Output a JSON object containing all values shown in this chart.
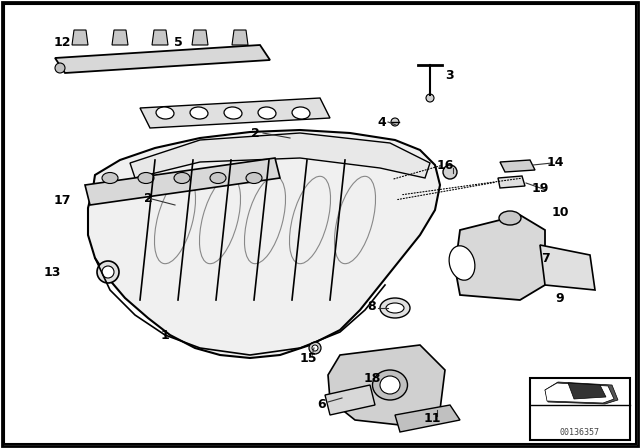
{
  "bg_color": "#ffffff",
  "border_color": "#000000",
  "line_color": "#000000",
  "watermark": "00136357",
  "fig_width": 6.4,
  "fig_height": 4.48,
  "dpi": 100
}
